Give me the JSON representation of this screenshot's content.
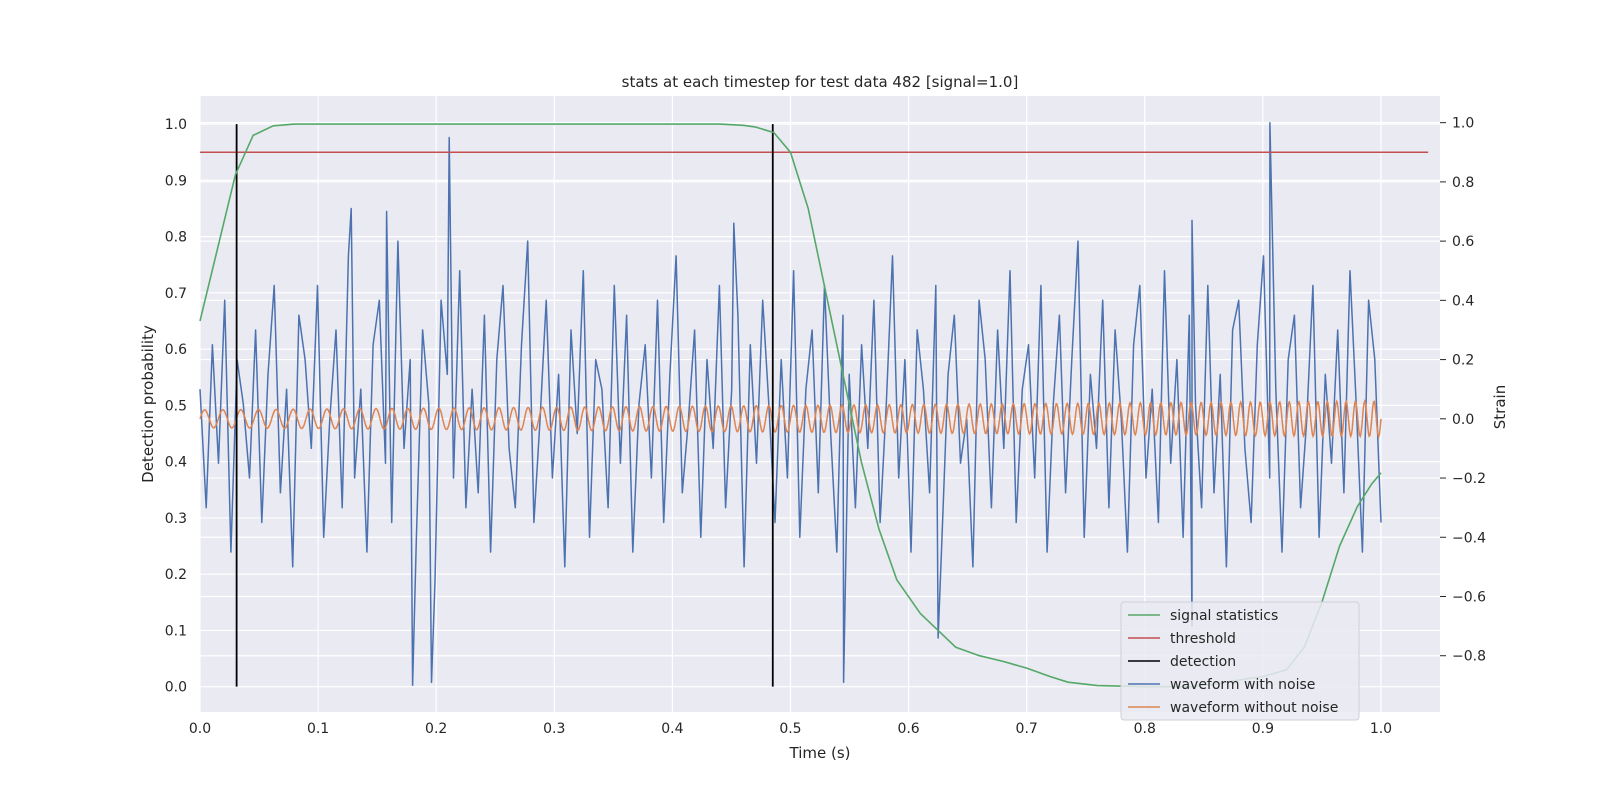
{
  "chart_data": {
    "type": "line",
    "title": "stats at each timestep for test data 482 [signal=1.0]",
    "xlabel": "Time (s)",
    "ylabel": "Detection probability",
    "y2label": "Strain",
    "xlim": [
      0.0,
      1.05
    ],
    "ylim": [
      -0.045,
      1.05
    ],
    "y2lim": [
      -0.99,
      1.09
    ],
    "x_ticks": [
      "0.0",
      "0.1",
      "0.2",
      "0.3",
      "0.4",
      "0.5",
      "0.6",
      "0.7",
      "0.8",
      "0.9",
      "1.0"
    ],
    "y_ticks": [
      "0.0",
      "0.1",
      "0.2",
      "0.3",
      "0.4",
      "0.5",
      "0.6",
      "0.7",
      "0.8",
      "0.9",
      "1.0"
    ],
    "y2_ticks": [
      "−0.8",
      "−0.6",
      "−0.4",
      "−0.2",
      "0.0",
      "0.2",
      "0.4",
      "0.6",
      "0.8",
      "1.0"
    ],
    "grid": true,
    "legend_position": "lower-right",
    "colors": {
      "signal": "#55a868",
      "threshold": "#c44e52",
      "detection": "#000000",
      "noisy": "#4c72b0",
      "clean": "#dd8452",
      "background": "#eaeaf2",
      "grid": "#ffffff"
    },
    "series": [
      {
        "name": "signal statistics",
        "axis": "left",
        "x": [
          0.0,
          0.015,
          0.03,
          0.045,
          0.062,
          0.08,
          0.1,
          0.2,
          0.3,
          0.4,
          0.44,
          0.46,
          0.47,
          0.486,
          0.5,
          0.515,
          0.53,
          0.545,
          0.56,
          0.575,
          0.59,
          0.61,
          0.625,
          0.64,
          0.66,
          0.68,
          0.7,
          0.72,
          0.735,
          0.76,
          0.8,
          0.82,
          0.84,
          0.86,
          0.88,
          0.9,
          0.92,
          0.935,
          0.95,
          0.965,
          0.98,
          0.992,
          1.0
        ],
        "y": [
          0.65,
          0.78,
          0.91,
          0.98,
          0.997,
          1.0,
          1.0,
          1.0,
          1.0,
          1.0,
          1.0,
          0.998,
          0.995,
          0.985,
          0.95,
          0.85,
          0.7,
          0.55,
          0.4,
          0.28,
          0.19,
          0.13,
          0.1,
          0.07,
          0.055,
          0.045,
          0.033,
          0.018,
          0.008,
          0.002,
          0.0,
          0.0,
          0.0,
          0.005,
          0.012,
          0.018,
          0.03,
          0.07,
          0.15,
          0.25,
          0.32,
          0.36,
          0.38
        ]
      },
      {
        "name": "threshold",
        "axis": "left",
        "x": [
          0.0,
          1.04
        ],
        "y": [
          0.95,
          0.95
        ]
      },
      {
        "name": "detection",
        "axis": "left",
        "type": "vlines",
        "x": [
          0.031,
          0.485
        ],
        "ymin": 0.0,
        "ymax": 1.0
      },
      {
        "name": "waveform with noise",
        "axis": "right",
        "x_start": 0.0,
        "x_end": 1.0,
        "y": [
          0.1,
          -0.3,
          0.25,
          -0.15,
          0.4,
          -0.45,
          0.2,
          0.05,
          -0.2,
          0.3,
          -0.35,
          0.15,
          0.45,
          -0.25,
          0.1,
          -0.5,
          0.35,
          0.2,
          -0.1,
          0.45,
          -0.4,
          0.0,
          0.3,
          -0.3,
          0.55,
          -0.2,
          0.1,
          -0.45,
          0.25,
          0.4,
          -0.15,
          -0.35,
          0.6,
          -0.1,
          0.2,
          -0.4,
          0.3,
          0.05,
          -0.55,
          0.4,
          0.15,
          -0.2,
          0.5,
          -0.3,
          0.1,
          -0.25,
          0.35,
          -0.45,
          0.2,
          0.45,
          -0.1,
          -0.3,
          0.25,
          0.6,
          -0.35,
          0.0,
          0.4,
          -0.2,
          0.15,
          -0.5,
          0.3,
          -0.05,
          0.5,
          -0.4,
          0.2,
          0.1,
          -0.3,
          0.45,
          -0.15,
          0.35,
          -0.45,
          0.05,
          0.25,
          -0.2,
          0.4,
          -0.35,
          0.15,
          0.55,
          -0.25,
          0.0,
          0.3,
          -0.4,
          0.2,
          -0.1,
          0.45,
          -0.3,
          0.1,
          0.35,
          -0.5,
          0.25,
          -0.15,
          0.4,
          0.05,
          -0.35,
          0.2,
          -0.2,
          0.5,
          -0.4,
          0.1,
          0.3,
          -0.25,
          0.45,
          -0.05,
          -0.45,
          0.35,
          0.15,
          -0.3,
          0.25,
          -0.1,
          0.4,
          -0.35,
          0.05,
          0.55,
          -0.2,
          0.2,
          -0.45,
          0.3,
          0.1,
          -0.25,
          0.45,
          -0.4,
          0.15,
          0.35,
          -0.15,
          0.0,
          -0.5,
          0.4,
          0.2,
          -0.3,
          0.3,
          -0.1,
          0.5,
          -0.35,
          0.1,
          0.25,
          -0.2,
          0.45,
          -0.45,
          0.05,
          0.35,
          -0.25,
          0.2,
          0.6,
          -0.4,
          0.15,
          -0.1,
          0.4,
          -0.3,
          0.3,
          0.0,
          -0.45,
          0.25,
          0.45,
          -0.2,
          0.1,
          -0.35,
          0.5,
          -0.15,
          0.2,
          -0.4,
          0.35,
          0.05,
          -0.3,
          0.45,
          -0.25,
          0.15,
          -0.5,
          0.3,
          0.4,
          -0.1,
          -0.35,
          0.25,
          0.55,
          -0.2,
          0.1,
          -0.45,
          0.2,
          0.35,
          -0.3,
          0.0,
          0.45,
          -0.4,
          0.15,
          -0.15,
          0.3,
          -0.25,
          0.5,
          0.05,
          -0.45,
          0.4,
          0.2,
          -0.35
        ]
      },
      {
        "name": "waveform without noise",
        "axis": "right",
        "x_start": 0.0,
        "x_end": 1.0,
        "amplitude_start": 0.03,
        "amplitude_end": 0.06,
        "cycles": 80
      }
    ],
    "noisy_spikes": [
      {
        "x": 0.18,
        "y": -0.9
      },
      {
        "x": 0.196,
        "y": -0.89
      },
      {
        "x": 0.211,
        "y": 0.95
      },
      {
        "x": 0.545,
        "y": -0.89
      },
      {
        "x": 0.625,
        "y": -0.74
      },
      {
        "x": 0.84,
        "y": -0.7
      },
      {
        "x": 0.906,
        "y": 1.0
      },
      {
        "x": 0.158,
        "y": 0.7
      },
      {
        "x": 0.128,
        "y": 0.71
      },
      {
        "x": 0.452,
        "y": 0.66
      },
      {
        "x": 0.84,
        "y": 0.67
      }
    ]
  }
}
